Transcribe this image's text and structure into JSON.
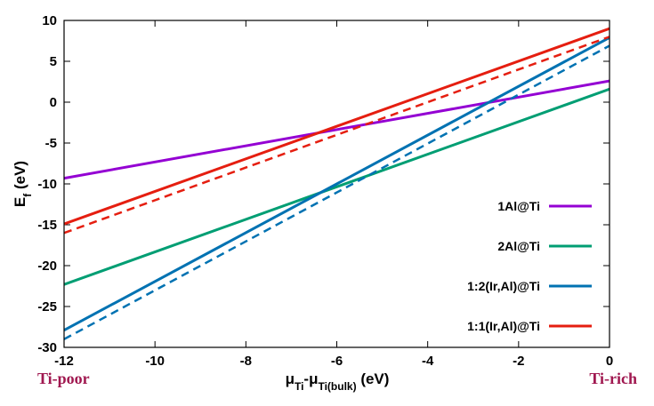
{
  "chart_data": {
    "type": "line",
    "title": "",
    "xlabel": "μ",
    "xlabel_sub1": "Ti",
    "xlabel_mid": "-μ",
    "xlabel_sub2": "Ti(bulk)",
    "xlabel_unit": " (eV)",
    "ylabel": "E",
    "ylabel_sub": "f",
    "ylabel_unit": " (eV)",
    "xlim": [
      -12,
      0
    ],
    "ylim": [
      -30,
      10
    ],
    "xticks": [
      "-12",
      "-10",
      "-8",
      "-6",
      "-4",
      "-2",
      "0"
    ],
    "yticks": [
      "-30",
      "-25",
      "-20",
      "-15",
      "-10",
      "-5",
      "0",
      "5",
      "10"
    ],
    "x_left_annotation": "Ti-poor",
    "x_right_annotation": "Ti-rich",
    "legend_position": "bottom-right",
    "series": [
      {
        "name": "1Al@Ti",
        "color": "#9400d3",
        "style": "solid",
        "x": [
          -12,
          0
        ],
        "y": [
          -9.3,
          2.6
        ]
      },
      {
        "name": "2Al@Ti",
        "color": "#009e73",
        "style": "solid",
        "x": [
          -12,
          0
        ],
        "y": [
          -22.3,
          1.6
        ]
      },
      {
        "name": "1:2(Ir,Al)@Ti",
        "color": "#0072b2",
        "style": "solid",
        "x": [
          -12,
          0
        ],
        "y": [
          -27.9,
          7.9
        ]
      },
      {
        "name": "1:1(Ir,Al)@Ti",
        "color": "#e51e10",
        "style": "solid",
        "x": [
          -12,
          0
        ],
        "y": [
          -14.9,
          9.0
        ]
      },
      {
        "name": "1:2(Ir,Al)@Ti dashed",
        "legend": false,
        "color": "#0072b2",
        "style": "dashed",
        "x": [
          -12,
          0
        ],
        "y": [
          -29.0,
          6.9
        ]
      },
      {
        "name": "1:1(Ir,Al)@Ti dashed",
        "legend": false,
        "color": "#e51e10",
        "style": "dashed",
        "x": [
          -12,
          0
        ],
        "y": [
          -16.0,
          8.0
        ]
      }
    ]
  }
}
